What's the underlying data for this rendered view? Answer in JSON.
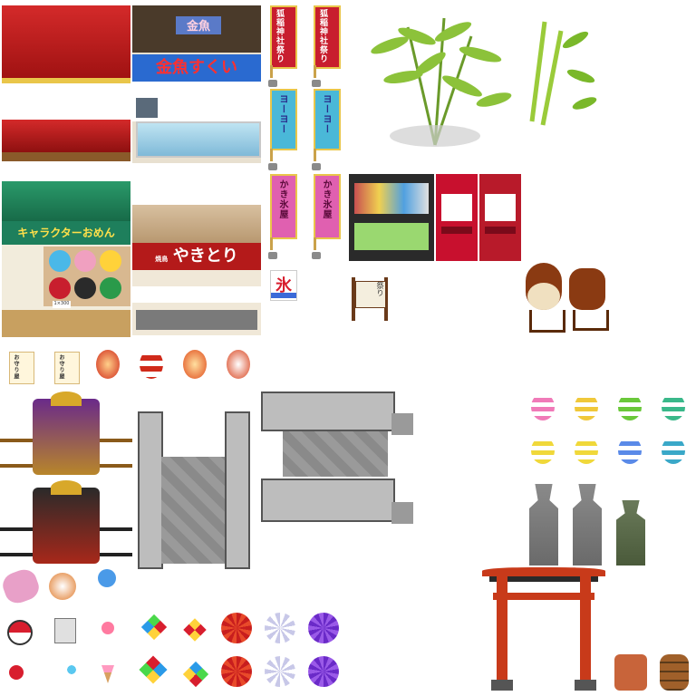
{
  "stalls": {
    "goldfish_sign": "金魚すくい",
    "goldfish_top": "金魚",
    "mask_sign": "キャラクターおめん",
    "mask_price": "1×300",
    "yakitori_sign": "やきとり",
    "yakitori_small": "焼鳥"
  },
  "banners": {
    "festival": "狐稲神社祭り",
    "yoyo": "ヨーヨー",
    "yo_letter": "ヨーヨー",
    "kakigoori": "かき氷屋"
  },
  "ice_flag": "氷",
  "signboard_text": "祭り",
  "ticket_text": "お守り屋",
  "colors": {
    "awning_red": "#c62020",
    "awning_green": "#1e7f5c",
    "stone_gray": "#9a9a9a",
    "torii_red": "#c83a1a",
    "vending_red": "#c8102e"
  },
  "lanterns_color": [
    "pink",
    "yellow",
    "green",
    "teal",
    "yellow",
    "yellow",
    "blue",
    "teal"
  ]
}
